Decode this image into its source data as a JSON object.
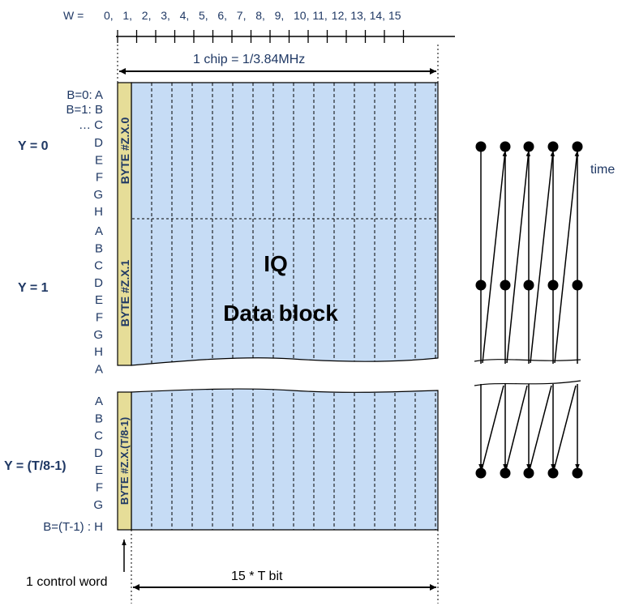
{
  "w_axis": {
    "prefix": "W =",
    "ticks": [
      "0,",
      "1,",
      "2,",
      "3,",
      "4,",
      "5,",
      "6,",
      "7,",
      "8,",
      "9,",
      "10,",
      "11,",
      "12,",
      "13,",
      "14,",
      "15"
    ]
  },
  "chip_label": "1  chip  = 1/3.84MHz",
  "byte_labels": [
    "B=0: A",
    "B=1: B",
    "… C"
  ],
  "row_letters_y0": [
    "D",
    "E",
    "F",
    "G",
    "H"
  ],
  "row_letters_y1": [
    "A",
    "B",
    "C",
    "D",
    "E",
    "F",
    "G",
    "H",
    "A"
  ],
  "row_letters_yl": [
    "A",
    "B",
    "C",
    "D",
    "E",
    "F",
    "G"
  ],
  "last_row_label": "B=(T-1) : H",
  "y_labels": [
    "Y = 0",
    "Y = 1",
    "Y = (T/8-1)"
  ],
  "control_bytes": [
    "BYTE #Z.X.0",
    "BYTE  #Z.X.1",
    "BYTE #Z.X.(T/8-1)"
  ],
  "iq_title": "IQ",
  "iq_subtitle": "Data block",
  "control_word_label": "1 control word",
  "bit_label": "15 * T bit",
  "time_label": "time",
  "colors": {
    "text": "#1f3864",
    "block_fill": "#c6dcf5",
    "control_fill": "#e6dd98",
    "line": "#000000"
  }
}
